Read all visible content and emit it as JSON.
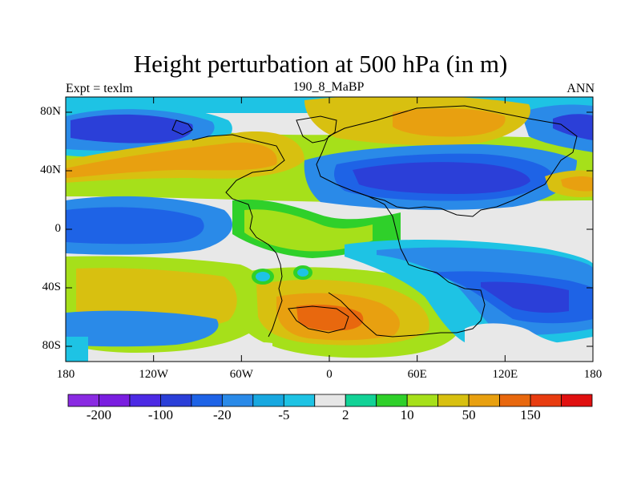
{
  "chart_data": {
    "type": "heatmap",
    "title": "Height perturbation at 500 hPa (in m)",
    "subtitle_left": "Expt = texlm",
    "subtitle_center": "190_8_MaBP",
    "subtitle_right": "ANN",
    "x_ticks": [
      "180",
      "120W",
      "60W",
      "0",
      "60E",
      "120E",
      "180"
    ],
    "y_ticks": [
      "80N",
      "40N",
      "0",
      "40S",
      "80S"
    ],
    "xlim": [
      -180,
      180
    ],
    "ylim": [
      -90,
      90
    ],
    "colorbar": {
      "colors": [
        "#8a2be2",
        "#7a1ee0",
        "#4c2ae4",
        "#2b3fd8",
        "#1e63e6",
        "#2a8ae8",
        "#18a8e0",
        "#1ec3e4",
        "#e6e6e6",
        "#12d296",
        "#2fd02a",
        "#a6e01a",
        "#d8c010",
        "#e8a010",
        "#e8680e",
        "#e83c10",
        "#e01010"
      ],
      "labels": [
        {
          "text": "-200",
          "boundary": 1
        },
        {
          "text": "-100",
          "boundary": 3
        },
        {
          "text": "-20",
          "boundary": 5
        },
        {
          "text": "-5",
          "boundary": 7
        },
        {
          "text": "2",
          "boundary": 9
        },
        {
          "text": "10",
          "boundary": 11
        },
        {
          "text": "50",
          "boundary": 13
        },
        {
          "text": "150",
          "boundary": 15
        }
      ]
    },
    "field_regions": [
      {
        "name": "north-pacific-low",
        "lon": -130,
        "lat": 62,
        "value": -100
      },
      {
        "name": "north-america-ridge",
        "lon": -40,
        "lat": 55,
        "value": 50
      },
      {
        "name": "eurasia-arctic-ridge",
        "lon": 80,
        "lat": 70,
        "value": 50
      },
      {
        "name": "central-asia-trough",
        "lon": 90,
        "lat": 32,
        "value": -100
      },
      {
        "name": "tropical-pacific-low",
        "lon": -150,
        "lat": 0,
        "value": -20
      },
      {
        "name": "south-atlantic-high",
        "lon": -10,
        "lat": -65,
        "value": 150
      },
      {
        "name": "south-indian-low",
        "lon": 120,
        "lat": -50,
        "value": -100
      },
      {
        "name": "south-pacific-high",
        "lon": -140,
        "lat": -50,
        "value": 50
      }
    ]
  }
}
